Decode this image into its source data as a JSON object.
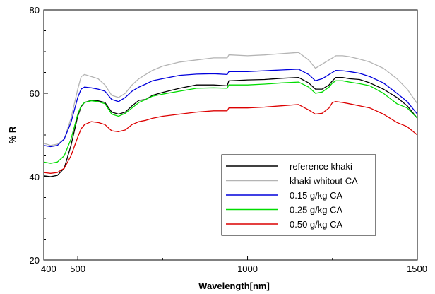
{
  "chart_data": {
    "type": "line",
    "title": "",
    "xlabel": "Wavelength[nm]",
    "ylabel": "% R",
    "xlim": [
      400,
      1500
    ],
    "ylim": [
      20,
      80
    ],
    "xticks": [
      400,
      500,
      1000,
      1500
    ],
    "xtick_labels": [
      "400",
      "500",
      "1000",
      "1500"
    ],
    "yticks": [
      20,
      40,
      60,
      80
    ],
    "ytick_labels": [
      "20",
      "40",
      "60",
      "80"
    ],
    "grid": false,
    "legend_position": "bottom-right",
    "series": [
      {
        "name": "reference khaki",
        "color": "#000000",
        "x": [
          400,
          420,
          440,
          460,
          480,
          500,
          510,
          520,
          540,
          560,
          580,
          600,
          620,
          640,
          660,
          680,
          700,
          720,
          750,
          800,
          850,
          900,
          940,
          945,
          950,
          1000,
          1050,
          1100,
          1150,
          1180,
          1200,
          1220,
          1240,
          1250,
          1260,
          1280,
          1300,
          1330,
          1360,
          1400,
          1440,
          1470,
          1500
        ],
        "y": [
          40.2,
          40.0,
          40.3,
          42.0,
          47.5,
          54.5,
          56.8,
          57.8,
          58.3,
          58.2,
          57.8,
          55.5,
          55.0,
          55.5,
          57.0,
          58.3,
          58.5,
          59.5,
          60.2,
          61.2,
          62.0,
          62.0,
          61.8,
          63.0,
          63.0,
          63.2,
          63.3,
          63.6,
          63.8,
          62.5,
          61.0,
          61.0,
          62.0,
          63.0,
          63.8,
          63.8,
          63.5,
          63.3,
          62.5,
          61.0,
          59.0,
          57.0,
          54.0
        ]
      },
      {
        "name": "khaki whitout CA",
        "color": "#b4b4b4",
        "x": [
          400,
          420,
          440,
          460,
          480,
          500,
          510,
          520,
          540,
          560,
          580,
          600,
          620,
          640,
          660,
          680,
          700,
          720,
          750,
          800,
          850,
          900,
          940,
          945,
          950,
          1000,
          1050,
          1100,
          1150,
          1180,
          1200,
          1220,
          1240,
          1250,
          1260,
          1280,
          1300,
          1330,
          1360,
          1400,
          1440,
          1470,
          1500
        ],
        "y": [
          48.0,
          47.5,
          47.8,
          49.0,
          54.0,
          61.0,
          64.0,
          64.5,
          64.0,
          63.5,
          62.0,
          59.5,
          59.0,
          60.0,
          62.0,
          63.5,
          64.5,
          65.5,
          66.5,
          67.5,
          68.0,
          68.5,
          68.5,
          69.2,
          69.2,
          69.0,
          69.2,
          69.5,
          69.8,
          68.0,
          66.0,
          67.0,
          68.0,
          68.5,
          69.0,
          69.0,
          68.8,
          68.2,
          67.5,
          66.0,
          63.5,
          61.0,
          57.5
        ]
      },
      {
        "name": "0.15 g/kg CA",
        "color": "#0000dc",
        "x": [
          400,
          420,
          440,
          460,
          480,
          500,
          510,
          520,
          540,
          560,
          580,
          600,
          620,
          640,
          660,
          680,
          700,
          720,
          750,
          800,
          850,
          900,
          940,
          945,
          950,
          1000,
          1050,
          1100,
          1150,
          1180,
          1200,
          1220,
          1240,
          1250,
          1260,
          1280,
          1300,
          1330,
          1360,
          1400,
          1440,
          1470,
          1500
        ],
        "y": [
          47.5,
          47.2,
          47.5,
          49.0,
          53.0,
          59.0,
          61.0,
          61.5,
          61.3,
          61.0,
          60.5,
          58.5,
          58.0,
          59.0,
          60.5,
          61.5,
          62.2,
          63.0,
          63.5,
          64.3,
          64.6,
          64.7,
          64.5,
          65.2,
          65.2,
          65.2,
          65.4,
          65.6,
          65.8,
          64.5,
          63.0,
          63.5,
          64.5,
          65.0,
          65.5,
          65.4,
          65.2,
          64.8,
          64.0,
          62.5,
          60.0,
          58.0,
          55.0
        ]
      },
      {
        "name": "0.25 g/kg CA",
        "color": "#00dc00",
        "x": [
          400,
          420,
          440,
          460,
          480,
          500,
          510,
          520,
          540,
          560,
          580,
          600,
          620,
          640,
          660,
          680,
          700,
          720,
          750,
          800,
          850,
          900,
          940,
          945,
          950,
          1000,
          1050,
          1100,
          1150,
          1180,
          1200,
          1220,
          1240,
          1250,
          1260,
          1280,
          1300,
          1330,
          1360,
          1400,
          1440,
          1470,
          1500
        ],
        "y": [
          43.5,
          43.2,
          43.5,
          45.0,
          49.0,
          55.0,
          57.0,
          57.8,
          58.2,
          58.0,
          57.5,
          55.0,
          54.5,
          55.2,
          56.5,
          57.8,
          58.5,
          59.3,
          59.8,
          60.5,
          61.2,
          61.3,
          61.2,
          62.0,
          62.0,
          62.0,
          62.2,
          62.5,
          62.7,
          61.5,
          60.0,
          60.3,
          61.5,
          62.5,
          63.0,
          63.0,
          62.7,
          62.3,
          61.8,
          60.0,
          57.5,
          56.5,
          54.0
        ]
      },
      {
        "name": "0.50 g/kg CA",
        "color": "#dc0000",
        "x": [
          400,
          420,
          440,
          460,
          480,
          500,
          510,
          520,
          540,
          560,
          580,
          600,
          620,
          640,
          660,
          680,
          700,
          720,
          750,
          800,
          850,
          900,
          940,
          945,
          950,
          1000,
          1050,
          1100,
          1150,
          1180,
          1200,
          1220,
          1240,
          1250,
          1260,
          1280,
          1300,
          1330,
          1360,
          1400,
          1440,
          1470,
          1500
        ],
        "y": [
          41.0,
          40.8,
          41.0,
          42.0,
          45.0,
          49.5,
          51.5,
          52.5,
          53.2,
          53.0,
          52.5,
          51.0,
          50.8,
          51.2,
          52.5,
          53.2,
          53.5,
          54.0,
          54.5,
          55.0,
          55.5,
          55.8,
          55.8,
          56.5,
          56.5,
          56.5,
          56.7,
          57.0,
          57.3,
          56.0,
          55.0,
          55.2,
          56.5,
          57.8,
          58.0,
          57.8,
          57.5,
          57.0,
          56.5,
          55.0,
          53.0,
          52.0,
          50.0
        ]
      }
    ]
  }
}
